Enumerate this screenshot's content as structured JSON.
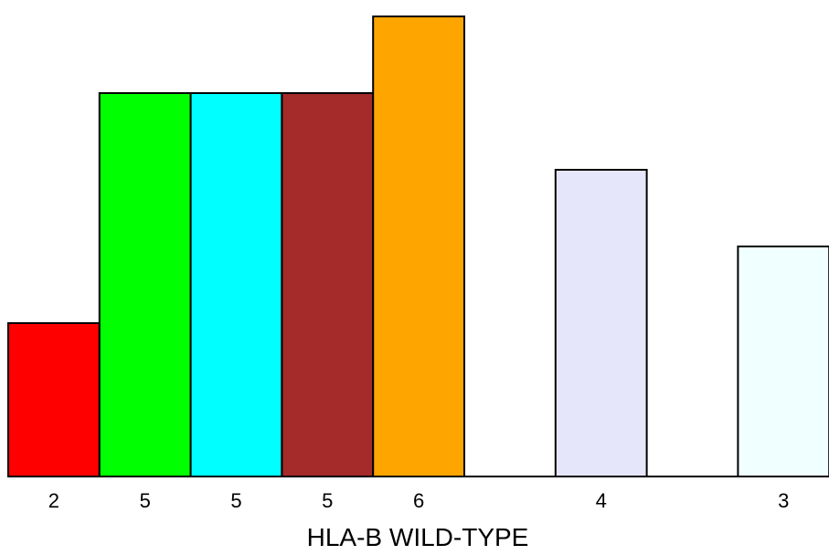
{
  "chart_data": {
    "type": "bar",
    "xlabel": "HLA-B WILD-TYPE",
    "ylim": [
      0,
      6
    ],
    "grid": false,
    "legend": "none",
    "bars": [
      {
        "slot": 0,
        "label": "2",
        "value": 2,
        "color": "#ff0000"
      },
      {
        "slot": 1,
        "label": "5",
        "value": 5,
        "color": "#00ff00"
      },
      {
        "slot": 2,
        "label": "5",
        "value": 5,
        "color": "#00ffff"
      },
      {
        "slot": 3,
        "label": "5",
        "value": 5,
        "color": "#a52a2a"
      },
      {
        "slot": 4,
        "label": "6",
        "value": 6,
        "color": "#ffa500"
      },
      {
        "slot": 6,
        "label": "4",
        "value": 4,
        "color": "#e6e6fa"
      },
      {
        "slot": 8,
        "label": "3",
        "value": 3,
        "color": "#f0ffff"
      }
    ]
  }
}
